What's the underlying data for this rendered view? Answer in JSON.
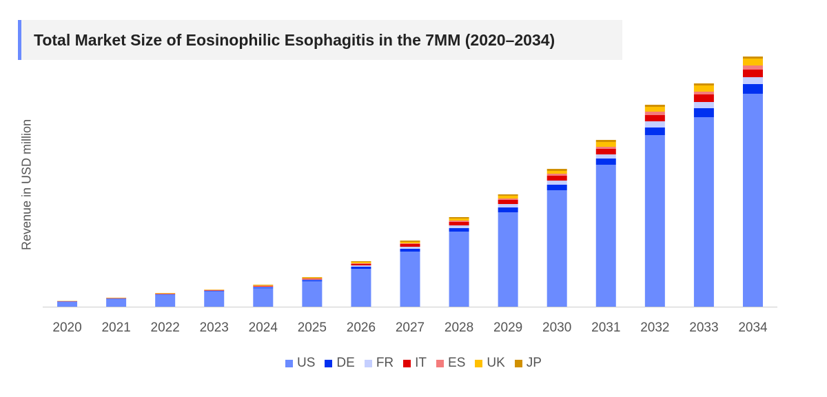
{
  "chart_data": {
    "type": "bar",
    "stacked": true,
    "title": "Total Market Size of Eosinophilic Esophagitis in the 7MM (2020–2034)",
    "ylabel": "Revenue in USD million",
    "xlabel": "",
    "y_tick_labels_shown": false,
    "grid": false,
    "legend_position": "bottom",
    "ylim": [
      0,
      370
    ],
    "categories": [
      "2020",
      "2021",
      "2022",
      "2023",
      "2024",
      "2025",
      "2026",
      "2027",
      "2028",
      "2029",
      "2030",
      "2031",
      "2032",
      "2033",
      "2034"
    ],
    "series": [
      {
        "name": "US",
        "color": "#6b8bff",
        "values": [
          7,
          11,
          17,
          22,
          27,
          37,
          55,
          80,
          109,
          137,
          169,
          206,
          249,
          275,
          309
        ]
      },
      {
        "name": "DE",
        "color": "#0030f0",
        "values": [
          0.4,
          0.5,
          0.7,
          0.8,
          1.2,
          1.5,
          3,
          4,
          5,
          7,
          8,
          9,
          11,
          13,
          14
        ]
      },
      {
        "name": "FR",
        "color": "#c5cfff",
        "values": [
          0.3,
          0.4,
          0.5,
          0.6,
          0.9,
          1,
          2,
          3,
          4,
          5,
          6,
          6,
          9,
          9,
          10
        ]
      },
      {
        "name": "IT",
        "color": "#e00000",
        "values": [
          0.3,
          0.4,
          0.6,
          0.6,
          1,
          1.2,
          2,
          4,
          5,
          6,
          7,
          8,
          9,
          11,
          11
        ]
      },
      {
        "name": "ES",
        "color": "#f47c7c",
        "values": [
          0.1,
          0.2,
          0.3,
          0.3,
          0.5,
          0.5,
          1,
          1,
          2,
          2,
          3,
          3,
          5,
          4,
          6
        ]
      },
      {
        "name": "UK",
        "color": "#ffc000",
        "values": [
          0.3,
          0.4,
          0.6,
          0.5,
          1,
          1.2,
          2,
          2,
          3,
          4,
          4,
          7,
          7,
          9,
          10
        ]
      },
      {
        "name": "JP",
        "color": "#d09000",
        "values": [
          0.1,
          0.2,
          0.3,
          0.2,
          0.4,
          0.6,
          1,
          2,
          2,
          2,
          3,
          3,
          3,
          3,
          3
        ]
      }
    ]
  }
}
